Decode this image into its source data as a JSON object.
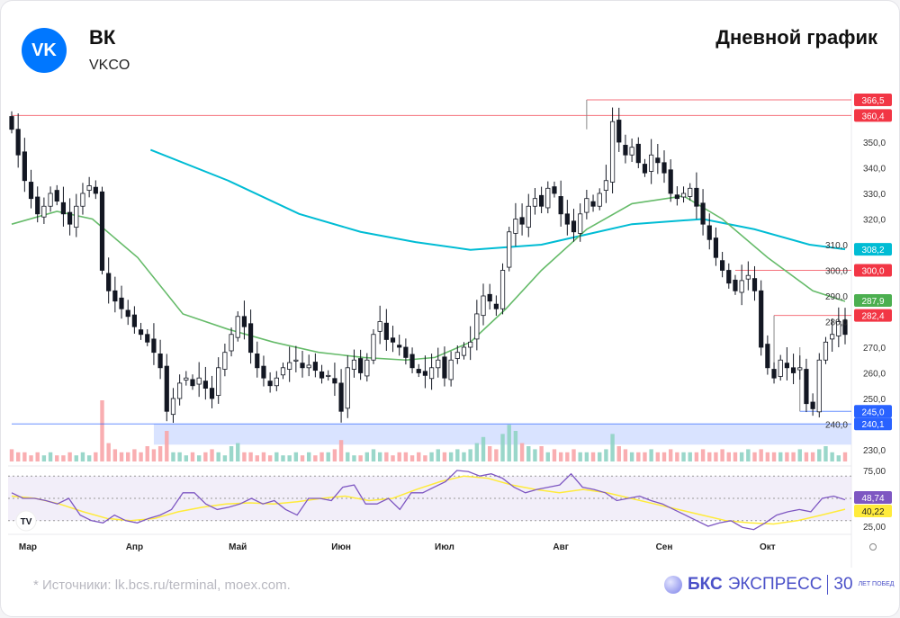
{
  "header": {
    "logo_text": "VK",
    "title": "ВК",
    "ticker": "VKCO",
    "chart_kind": "Дневной график"
  },
  "footer": {
    "source": "*  Источники: lk.bcs.ru/terminal, moex.com.",
    "brand_bold": "БКС",
    "brand_rest": "ЭКСПРЕСС",
    "brand_years": "30",
    "brand_small": "ЛЕТ ПОБЕД"
  },
  "colors": {
    "up": "#ffffff",
    "down": "#131722",
    "ma_long": "#00bcd4",
    "ma_short": "#66bb6a",
    "level_red": "#f23645",
    "level_blue": "#2962ff",
    "rsi": "#7e57c2",
    "rsi_signal": "#ffeb3b",
    "vol_up": "#8fd3c4",
    "vol_down": "#f8a5a8"
  },
  "chart_data": {
    "type": "candlestick",
    "price_axis": {
      "min": 230,
      "max": 350,
      "step": 10,
      "ticks": [
        "230,0",
        "240,0",
        "250,0",
        "260,0",
        "270,0",
        "280,0",
        "290,0",
        "300,0",
        "310,0",
        "320,0",
        "330,0",
        "340,0",
        "350,0"
      ]
    },
    "x_ticks": [
      {
        "label": "Мар",
        "index": 2.5
      },
      {
        "label": "Апр",
        "index": 19
      },
      {
        "label": "Май",
        "index": 35
      },
      {
        "label": "Июн",
        "index": 51
      },
      {
        "label": "Июл",
        "index": 67
      },
      {
        "label": "Авг",
        "index": 85
      },
      {
        "label": "Сен",
        "index": 101
      },
      {
        "label": "Окт",
        "index": 117
      }
    ],
    "closes": [
      355,
      345,
      335,
      328,
      322,
      325,
      330,
      327,
      322,
      318,
      325,
      330,
      333,
      330,
      300,
      292,
      288,
      285,
      282,
      278,
      275,
      272,
      268,
      262,
      245,
      250,
      256,
      258,
      255,
      258,
      254,
      250,
      262,
      268,
      275,
      282,
      278,
      268,
      262,
      258,
      255,
      258,
      262,
      264,
      265,
      262,
      263,
      261,
      258,
      259,
      256,
      245,
      262,
      265,
      260,
      265,
      275,
      280,
      273,
      272,
      270,
      266,
      262,
      260,
      259,
      262,
      265,
      258,
      265,
      268,
      270,
      272,
      283,
      290,
      288,
      285,
      300,
      315,
      320,
      318,
      325,
      328,
      325,
      332,
      330,
      322,
      318,
      315,
      322,
      328,
      325,
      330,
      335,
      358,
      350,
      345,
      348,
      342,
      338,
      345,
      342,
      338,
      330,
      328,
      330,
      332,
      325,
      318,
      312,
      305,
      300,
      295,
      292,
      296,
      298,
      292,
      270,
      262,
      258,
      265,
      262,
      260,
      262,
      248,
      246,
      265,
      272,
      275,
      280,
      275
    ],
    "volume": [
      4,
      3,
      3,
      2,
      3,
      2,
      3,
      2,
      2,
      3,
      2,
      3,
      2,
      3,
      20,
      6,
      4,
      3,
      3,
      4,
      3,
      5,
      4,
      5,
      10,
      3,
      3,
      2,
      3,
      2,
      3,
      4,
      3,
      2,
      5,
      6,
      3,
      3,
      2,
      3,
      2,
      3,
      2,
      2,
      3,
      2,
      3,
      2,
      3,
      3,
      4,
      7,
      3,
      2,
      2,
      3,
      4,
      3,
      3,
      2,
      3,
      3,
      2,
      3,
      2,
      3,
      4,
      3,
      3,
      4,
      3,
      4,
      6,
      8,
      5,
      4,
      9,
      12,
      10,
      6,
      5,
      4,
      5,
      3,
      4,
      3,
      3,
      4,
      3,
      3,
      3,
      3,
      4,
      9,
      5,
      4,
      3,
      3,
      3,
      4,
      3,
      3,
      4,
      3,
      3,
      3,
      3,
      4,
      3,
      3,
      4,
      3,
      3,
      3,
      4,
      3,
      4,
      3,
      3,
      3,
      3,
      3,
      4,
      3,
      3,
      4,
      5,
      3,
      2,
      3
    ],
    "ma_short": [
      [
        0,
        318
      ],
      [
        7,
        323
      ],
      [
        12.5,
        320
      ],
      [
        19.5,
        305
      ],
      [
        26.5,
        283
      ],
      [
        33.5,
        277
      ],
      [
        40.5,
        272
      ],
      [
        47.5,
        268
      ],
      [
        54.5,
        266
      ],
      [
        61,
        265
      ],
      [
        65.5,
        266
      ],
      [
        71,
        272
      ],
      [
        76.5,
        285
      ],
      [
        82,
        300
      ],
      [
        89,
        316
      ],
      [
        96,
        326
      ],
      [
        104,
        329
      ],
      [
        110,
        320
      ],
      [
        117,
        305
      ],
      [
        124,
        292
      ],
      [
        129,
        287.9
      ]
    ],
    "ma_long": [
      [
        21.5,
        347
      ],
      [
        33.5,
        335
      ],
      [
        44.5,
        322
      ],
      [
        54,
        315
      ],
      [
        62.5,
        311
      ],
      [
        71,
        308
      ],
      [
        82,
        310
      ],
      [
        96,
        318
      ],
      [
        107,
        320
      ],
      [
        115,
        316
      ],
      [
        123.5,
        310
      ],
      [
        129,
        308.2
      ]
    ],
    "levels": [
      {
        "label": "366,5",
        "value": 366.5,
        "from": 89,
        "color": "red"
      },
      {
        "label": "360,4",
        "value": 360.4,
        "from": 0,
        "color": "red"
      },
      {
        "label": "300,0",
        "value": 300,
        "from": 112,
        "color": "red"
      },
      {
        "label": "282,4",
        "value": 282.4,
        "from": 118,
        "color": "red"
      },
      {
        "label": "245,0",
        "value": 245,
        "from": 122,
        "color": "blue"
      },
      {
        "label": "240,1",
        "value": 240.1,
        "from": 0,
        "color": "blue"
      }
    ],
    "ma_labels": {
      "long": "308,2",
      "short": "287,9"
    },
    "zone": {
      "from_index": 22,
      "low": 232,
      "high": 240.1
    },
    "rsi": {
      "ticks": [
        "75,00",
        "25,00"
      ],
      "bands": [
        70,
        50,
        30
      ],
      "value_label": "48,74",
      "signal_label": "40,22",
      "values": [
        55,
        50,
        50,
        48,
        45,
        50,
        35,
        30,
        28,
        35,
        30,
        28,
        32,
        35,
        40,
        55,
        55,
        45,
        40,
        42,
        45,
        50,
        45,
        48,
        40,
        35,
        50,
        50,
        48,
        60,
        62,
        45,
        45,
        50,
        40,
        55,
        55,
        60,
        65,
        75,
        74,
        70,
        72,
        68,
        60,
        55,
        58,
        60,
        62,
        72,
        60,
        58,
        55,
        48,
        50,
        52,
        48,
        45,
        40,
        35,
        30,
        25,
        28,
        30,
        24,
        22,
        28,
        35,
        38,
        40,
        38,
        50,
        52,
        48.74
      ],
      "signal": [
        52,
        50,
        45,
        38,
        32,
        30,
        32,
        38,
        42,
        45,
        46,
        45,
        47,
        50,
        52,
        48,
        50,
        58,
        65,
        70,
        68,
        62,
        58,
        55,
        58,
        55,
        50,
        45,
        40,
        35,
        30,
        28,
        27,
        30,
        35,
        40.22
      ]
    }
  }
}
